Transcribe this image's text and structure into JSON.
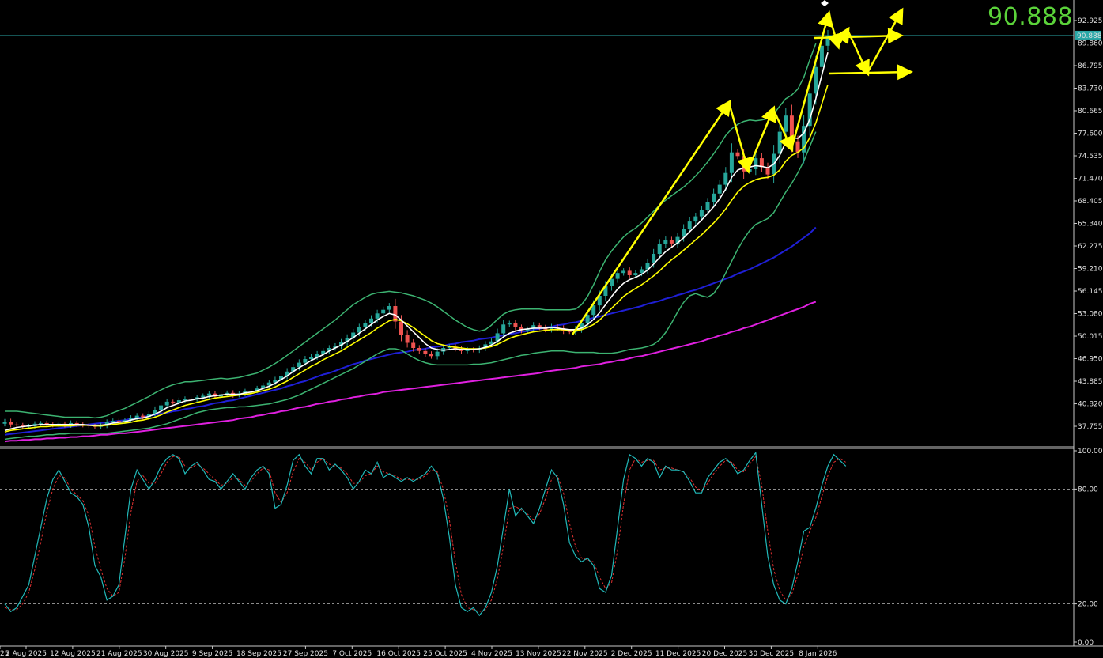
{
  "big_price": "90.888",
  "current_price_label": "90.888",
  "colors": {
    "background": "#000000",
    "bull": "#26a69a",
    "bear": "#ef5350",
    "ma_fast": "#ffffff",
    "ma_slow": "#ffff00",
    "bollinger": "#3cb371",
    "ma_blue": "#1f1fd6",
    "ma_magenta": "#e020e0",
    "stoch_main": "#21b8b8",
    "stoch_signal": "#e03030",
    "arrows": "#ffff00",
    "price_line": "#2aa8a8",
    "big_price": "#5bd33a"
  },
  "chart_data": [
    {
      "type": "candlestick",
      "title": "",
      "ylim": [
        35.5,
        94.0
      ],
      "y_ticks": [
        "92.925",
        "89.860",
        "86.795",
        "83.730",
        "80.665",
        "77.600",
        "74.535",
        "71.470",
        "68.405",
        "65.340",
        "62.275",
        "59.210",
        "56.145",
        "53.080",
        "50.015",
        "46.950",
        "43.885",
        "40.820",
        "37.755"
      ],
      "x_ticks": [
        "25",
        "2 Aug 2025",
        "12 Aug 2025",
        "21 Aug 2025",
        "30 Aug 2025",
        "9 Sep 2025",
        "18 Sep 2025",
        "27 Sep 2025",
        "7 Oct 2025",
        "16 Oct 2025",
        "25 Oct 2025",
        "4 Nov 2025",
        "13 Nov 2025",
        "22 Nov 2025",
        "2 Dec 2025",
        "11 Dec 2025",
        "20 Dec 2025",
        "30 Dec 2025",
        "8 Jan 2026"
      ],
      "current_price": 90.888,
      "close_series": [
        38.4,
        38.0,
        37.9,
        37.7,
        37.8,
        38.1,
        38.2,
        38.0,
        37.9,
        38.1,
        37.9,
        38.2,
        38.0,
        37.9,
        37.8,
        37.7,
        37.9,
        38.3,
        38.5,
        38.4,
        38.6,
        38.9,
        39.2,
        39.0,
        39.4,
        40.0,
        40.6,
        41.1,
        41.0,
        41.3,
        41.5,
        41.4,
        41.7,
        41.9,
        42.2,
        41.8,
        42.1,
        42.3,
        42.0,
        42.2,
        42.5,
        42.6,
        42.9,
        43.3,
        43.7,
        44.1,
        44.6,
        45.2,
        45.8,
        46.4,
        46.9,
        47.2,
        47.6,
        48.0,
        48.4,
        48.7,
        49.2,
        49.8,
        50.5,
        51.2,
        51.8,
        52.4,
        53.1,
        53.6,
        54.1,
        52.0,
        50.2,
        49.1,
        48.4,
        48.0,
        47.6,
        47.3,
        47.9,
        48.4,
        48.6,
        48.3,
        48.0,
        48.2,
        48.1,
        48.4,
        48.9,
        49.3,
        50.4,
        51.6,
        51.8,
        51.2,
        50.8,
        51.0,
        51.5,
        51.2,
        50.9,
        51.3,
        51.1,
        50.7,
        50.6,
        51.0,
        51.8,
        52.9,
        54.2,
        55.5,
        56.8,
        57.8,
        58.6,
        58.9,
        58.3,
        58.6,
        59.1,
        60.0,
        61.2,
        62.5,
        63.1,
        62.6,
        63.5,
        64.6,
        65.6,
        66.3,
        67.2,
        68.2,
        69.4,
        70.6,
        72.2,
        75.0,
        74.5,
        72.4,
        72.7,
        74.2,
        73.0,
        72.0,
        74.8,
        77.8,
        80.0,
        76.5,
        75.0,
        78.6,
        83.0,
        86.6,
        89.5,
        90.9
      ],
      "ma_fast": [
        37.2,
        37.4,
        37.6,
        37.7,
        37.8,
        37.9,
        38.0,
        38.0,
        38.0,
        38.0,
        38.0,
        38.0,
        38.0,
        38.0,
        37.9,
        37.9,
        37.9,
        38.0,
        38.2,
        38.3,
        38.4,
        38.6,
        38.8,
        38.9,
        39.1,
        39.4,
        39.8,
        40.3,
        40.6,
        40.9,
        41.2,
        41.3,
        41.5,
        41.6,
        41.8,
        41.9,
        42.0,
        42.1,
        42.1,
        42.1,
        42.3,
        42.4,
        42.6,
        42.9,
        43.2,
        43.6,
        44.1,
        44.6,
        45.2,
        45.7,
        46.2,
        46.7,
        47.1,
        47.5,
        48.0,
        48.4,
        48.8,
        49.3,
        49.8,
        50.4,
        51.0,
        51.6,
        52.2,
        52.7,
        53.1,
        52.9,
        52.2,
        51.4,
        50.6,
        49.8,
        49.0,
        48.4,
        48.2,
        48.1,
        48.2,
        48.3,
        48.2,
        48.2,
        48.2,
        48.3,
        48.5,
        48.8,
        49.3,
        49.9,
        50.4,
        50.7,
        50.9,
        51.0,
        51.1,
        51.1,
        51.1,
        51.2,
        51.1,
        51.0,
        50.9,
        50.9,
        51.1,
        51.6,
        52.3,
        53.2,
        54.3,
        55.4,
        56.4,
        57.2,
        57.7,
        58.0,
        58.4,
        59.0,
        59.8,
        60.7,
        61.5,
        62.1,
        62.7,
        63.4,
        64.2,
        65.0,
        65.8,
        66.7,
        67.6,
        68.7,
        70.0,
        71.6,
        72.6,
        72.9,
        73.0,
        73.2,
        73.1,
        72.9,
        73.4,
        74.6,
        76.4,
        77.0,
        76.9,
        77.6,
        79.5,
        82.3,
        85.5,
        88.6
      ],
      "ma_slow": [
        37.0,
        37.2,
        37.3,
        37.4,
        37.5,
        37.6,
        37.7,
        37.7,
        37.8,
        37.8,
        37.8,
        37.8,
        37.9,
        37.9,
        37.9,
        37.8,
        37.8,
        37.9,
        38.0,
        38.1,
        38.2,
        38.3,
        38.5,
        38.6,
        38.8,
        39.0,
        39.3,
        39.7,
        40.0,
        40.3,
        40.6,
        40.8,
        41.0,
        41.2,
        41.4,
        41.6,
        41.7,
        41.8,
        41.9,
        42.0,
        42.1,
        42.2,
        42.4,
        42.6,
        42.8,
        43.1,
        43.5,
        43.9,
        44.4,
        44.9,
        45.4,
        45.9,
        46.3,
        46.8,
        47.2,
        47.6,
        48.0,
        48.5,
        49.0,
        49.5,
        50.0,
        50.5,
        51.1,
        51.6,
        52.1,
        52.3,
        52.1,
        51.7,
        51.2,
        50.6,
        50.0,
        49.4,
        49.0,
        48.8,
        48.6,
        48.5,
        48.4,
        48.3,
        48.3,
        48.3,
        48.4,
        48.6,
        48.9,
        49.3,
        49.7,
        50.0,
        50.2,
        50.4,
        50.6,
        50.7,
        50.8,
        50.9,
        50.9,
        50.9,
        50.8,
        50.8,
        50.9,
        51.2,
        51.6,
        52.2,
        53.0,
        53.8,
        54.6,
        55.4,
        56.0,
        56.5,
        57.0,
        57.6,
        58.2,
        58.9,
        59.7,
        60.4,
        61.0,
        61.7,
        62.4,
        63.1,
        63.8,
        64.6,
        65.4,
        66.3,
        67.3,
        68.5,
        69.6,
        70.4,
        70.9,
        71.3,
        71.5,
        71.6,
        71.9,
        72.6,
        73.8,
        74.6,
        75.0,
        75.6,
        77.0,
        79.0,
        81.6,
        84.2
      ],
      "boll_upper": [
        39.8,
        39.8,
        39.8,
        39.7,
        39.6,
        39.5,
        39.4,
        39.3,
        39.2,
        39.1,
        39.0,
        39.0,
        39.0,
        39.0,
        39.0,
        38.9,
        39.0,
        39.2,
        39.6,
        39.9,
        40.2,
        40.6,
        41.0,
        41.4,
        41.8,
        42.3,
        42.7,
        43.1,
        43.4,
        43.6,
        43.8,
        43.8,
        43.9,
        44.0,
        44.1,
        44.2,
        44.3,
        44.2,
        44.3,
        44.4,
        44.6,
        44.8,
        45.0,
        45.4,
        45.8,
        46.3,
        46.8,
        47.4,
        48.0,
        48.6,
        49.2,
        49.8,
        50.4,
        51.0,
        51.6,
        52.2,
        52.9,
        53.6,
        54.3,
        54.8,
        55.3,
        55.7,
        55.9,
        56.0,
        56.1,
        56.0,
        55.9,
        55.7,
        55.5,
        55.2,
        54.9,
        54.5,
        54.0,
        53.4,
        52.8,
        52.2,
        51.7,
        51.2,
        50.9,
        50.7,
        50.9,
        51.5,
        52.3,
        53.0,
        53.4,
        53.6,
        53.7,
        53.7,
        53.7,
        53.7,
        53.6,
        53.6,
        53.6,
        53.6,
        53.6,
        53.7,
        54.3,
        55.4,
        57.0,
        58.8,
        60.4,
        61.6,
        62.6,
        63.5,
        64.2,
        64.7,
        65.4,
        66.2,
        67.0,
        67.8,
        68.5,
        69.1,
        69.7,
        70.3,
        71.0,
        71.8,
        72.7,
        73.7,
        74.8,
        76.0,
        77.3,
        78.2,
        78.8,
        79.2,
        79.4,
        79.3,
        79.4,
        79.6,
        80.2,
        81.3,
        82.3,
        82.8,
        83.6,
        85.2,
        87.6,
        89.8
      ],
      "boll_lower": [
        36.0,
        36.1,
        36.2,
        36.3,
        36.4,
        36.4,
        36.5,
        36.6,
        36.6,
        36.7,
        36.7,
        36.8,
        36.8,
        36.8,
        36.8,
        36.8,
        36.8,
        36.8,
        36.9,
        37.0,
        37.1,
        37.2,
        37.3,
        37.4,
        37.5,
        37.7,
        37.9,
        38.1,
        38.4,
        38.7,
        39.0,
        39.3,
        39.6,
        39.8,
        40.0,
        40.1,
        40.2,
        40.3,
        40.3,
        40.4,
        40.4,
        40.5,
        40.6,
        40.7,
        40.8,
        41.0,
        41.2,
        41.4,
        41.7,
        42.0,
        42.4,
        42.8,
        43.2,
        43.6,
        44.0,
        44.4,
        44.8,
        45.2,
        45.6,
        46.1,
        46.6,
        47.1,
        47.6,
        48.0,
        48.3,
        48.3,
        48.1,
        47.6,
        47.1,
        46.7,
        46.4,
        46.2,
        46.1,
        46.1,
        46.1,
        46.1,
        46.1,
        46.1,
        46.2,
        46.2,
        46.3,
        46.4,
        46.6,
        46.8,
        47.0,
        47.2,
        47.4,
        47.5,
        47.7,
        47.8,
        47.9,
        48.0,
        48.0,
        48.0,
        47.9,
        47.8,
        47.8,
        47.8,
        47.8,
        47.7,
        47.7,
        47.7,
        47.8,
        48.0,
        48.2,
        48.3,
        48.4,
        48.6,
        48.9,
        49.5,
        50.5,
        51.8,
        53.3,
        54.6,
        55.5,
        55.8,
        55.5,
        55.3,
        55.8,
        57.0,
        58.6,
        60.2,
        61.8,
        63.2,
        64.4,
        65.2,
        65.6,
        66.0,
        66.8,
        68.2,
        69.6,
        70.8,
        72.2,
        73.8,
        75.8,
        77.8
      ],
      "ma_blue": [
        36.6,
        36.7,
        36.8,
        36.9,
        37.0,
        37.1,
        37.2,
        37.3,
        37.4,
        37.5,
        37.6,
        37.7,
        37.8,
        37.9,
        38.0,
        38.1,
        38.2,
        38.3,
        38.4,
        38.5,
        38.6,
        38.8,
        38.9,
        39.0,
        39.2,
        39.3,
        39.5,
        39.6,
        39.8,
        39.9,
        40.1,
        40.2,
        40.4,
        40.5,
        40.7,
        40.9,
        41.0,
        41.2,
        41.3,
        41.5,
        41.7,
        41.9,
        42.1,
        42.3,
        42.5,
        42.7,
        42.9,
        43.2,
        43.4,
        43.7,
        43.9,
        44.2,
        44.5,
        44.8,
        45.0,
        45.3,
        45.6,
        45.9,
        46.2,
        46.4,
        46.7,
        46.9,
        47.1,
        47.3,
        47.5,
        47.7,
        47.8,
        47.9,
        48.1,
        48.2,
        48.3,
        48.5,
        48.6,
        48.7,
        48.9,
        49.0,
        49.2,
        49.3,
        49.4,
        49.6,
        49.7,
        49.8,
        50.0,
        50.1,
        50.3,
        50.4,
        50.6,
        50.7,
        50.9,
        51.0,
        51.2,
        51.3,
        51.5,
        51.6,
        51.8,
        51.9,
        52.1,
        52.3,
        52.5,
        52.7,
        52.9,
        53.1,
        53.3,
        53.5,
        53.7,
        53.9,
        54.1,
        54.4,
        54.6,
        54.8,
        55.1,
        55.3,
        55.6,
        55.8,
        56.1,
        56.3,
        56.6,
        56.9,
        57.2,
        57.5,
        57.8,
        58.1,
        58.5,
        58.8,
        59.1,
        59.5,
        59.9,
        60.3,
        60.7,
        61.2,
        61.7,
        62.2,
        62.8,
        63.4,
        64.0,
        64.8
      ],
      "ma_magenta": [
        35.7,
        35.8,
        35.8,
        35.9,
        35.9,
        36.0,
        36.0,
        36.1,
        36.1,
        36.2,
        36.2,
        36.3,
        36.3,
        36.4,
        36.4,
        36.5,
        36.6,
        36.6,
        36.7,
        36.8,
        36.8,
        36.9,
        37.0,
        37.1,
        37.2,
        37.3,
        37.4,
        37.5,
        37.6,
        37.7,
        37.8,
        37.9,
        38.0,
        38.1,
        38.2,
        38.3,
        38.4,
        38.5,
        38.6,
        38.8,
        38.9,
        39.0,
        39.2,
        39.3,
        39.5,
        39.6,
        39.8,
        39.9,
        40.1,
        40.3,
        40.4,
        40.6,
        40.8,
        40.9,
        41.1,
        41.2,
        41.4,
        41.5,
        41.7,
        41.8,
        42.0,
        42.1,
        42.2,
        42.4,
        42.5,
        42.6,
        42.7,
        42.8,
        42.9,
        43.0,
        43.1,
        43.2,
        43.3,
        43.4,
        43.5,
        43.6,
        43.7,
        43.8,
        43.9,
        44.0,
        44.1,
        44.2,
        44.3,
        44.4,
        44.5,
        44.6,
        44.7,
        44.8,
        44.9,
        45.0,
        45.2,
        45.3,
        45.4,
        45.5,
        45.6,
        45.7,
        45.9,
        46.0,
        46.1,
        46.2,
        46.4,
        46.5,
        46.7,
        46.8,
        47.0,
        47.2,
        47.3,
        47.5,
        47.7,
        47.9,
        48.1,
        48.3,
        48.5,
        48.7,
        48.9,
        49.1,
        49.3,
        49.6,
        49.8,
        50.1,
        50.3,
        50.6,
        50.8,
        51.1,
        51.3,
        51.6,
        51.9,
        52.2,
        52.5,
        52.8,
        53.1,
        53.4,
        53.7,
        54.0,
        54.4,
        54.7
      ]
    },
    {
      "type": "line",
      "title": "",
      "ylim": [
        0,
        100
      ],
      "y_ticks": [
        "100.00",
        "80.00",
        "20.00",
        "0.00"
      ],
      "levels": [
        80,
        20
      ],
      "series": [
        {
          "values": [
            20,
            16,
            18,
            24,
            30,
            45,
            60,
            75,
            85,
            90,
            84,
            78,
            76,
            72,
            60,
            40,
            34,
            22,
            24,
            30,
            55,
            80,
            90,
            85,
            80,
            85,
            92,
            96,
            98,
            96,
            88,
            92,
            94,
            90,
            85,
            84,
            80,
            84,
            88,
            84,
            80,
            86,
            90,
            92,
            88,
            70,
            72,
            82,
            95,
            98,
            92,
            88,
            96,
            96,
            90,
            93,
            90,
            86,
            80,
            84,
            90,
            88,
            94,
            86,
            88,
            86,
            84,
            86,
            84,
            86,
            88,
            92,
            88,
            75,
            55,
            30,
            18,
            16,
            18,
            14,
            18,
            26,
            40,
            60,
            80,
            66,
            70,
            66,
            62,
            70,
            80,
            90,
            86,
            72,
            52,
            45,
            42,
            44,
            40,
            28,
            26,
            35,
            60,
            85,
            98,
            96,
            92,
            96,
            94,
            86,
            92,
            90,
            90,
            89,
            84,
            78,
            78,
            86,
            90,
            94,
            96,
            93,
            88,
            90,
            95,
            99,
            72,
            45,
            30,
            22,
            20,
            28,
            42,
            58,
            60,
            70,
            82,
            92,
            98,
            95,
            92
          ]
        },
        {
          "values": [
            18,
            17,
            17,
            20,
            26,
            38,
            52,
            68,
            80,
            87,
            86,
            80,
            77,
            74,
            66,
            50,
            38,
            28,
            24,
            26,
            44,
            68,
            84,
            87,
            83,
            83,
            88,
            94,
            97,
            97,
            92,
            91,
            93,
            91,
            88,
            85,
            82,
            83,
            86,
            85,
            82,
            84,
            88,
            91,
            90,
            78,
            73,
            78,
            89,
            96,
            94,
            90,
            94,
            96,
            93,
            92,
            91,
            88,
            83,
            83,
            87,
            88,
            92,
            89,
            88,
            87,
            85,
            85,
            85,
            85,
            87,
            90,
            89,
            80,
            64,
            42,
            25,
            18,
            17,
            16,
            17,
            22,
            33,
            50,
            70,
            71,
            69,
            67,
            64,
            67,
            75,
            85,
            87,
            78,
            62,
            50,
            44,
            43,
            42,
            34,
            28,
            31,
            48,
            72,
            90,
            96,
            94,
            95,
            95,
            90,
            91,
            91,
            90,
            89,
            86,
            81,
            79,
            83,
            88,
            92,
            95,
            94,
            90,
            89,
            93,
            97,
            82,
            58,
            38,
            27,
            22,
            25,
            35,
            50,
            58,
            65,
            76,
            87,
            94,
            96,
            94
          ]
        }
      ]
    }
  ]
}
